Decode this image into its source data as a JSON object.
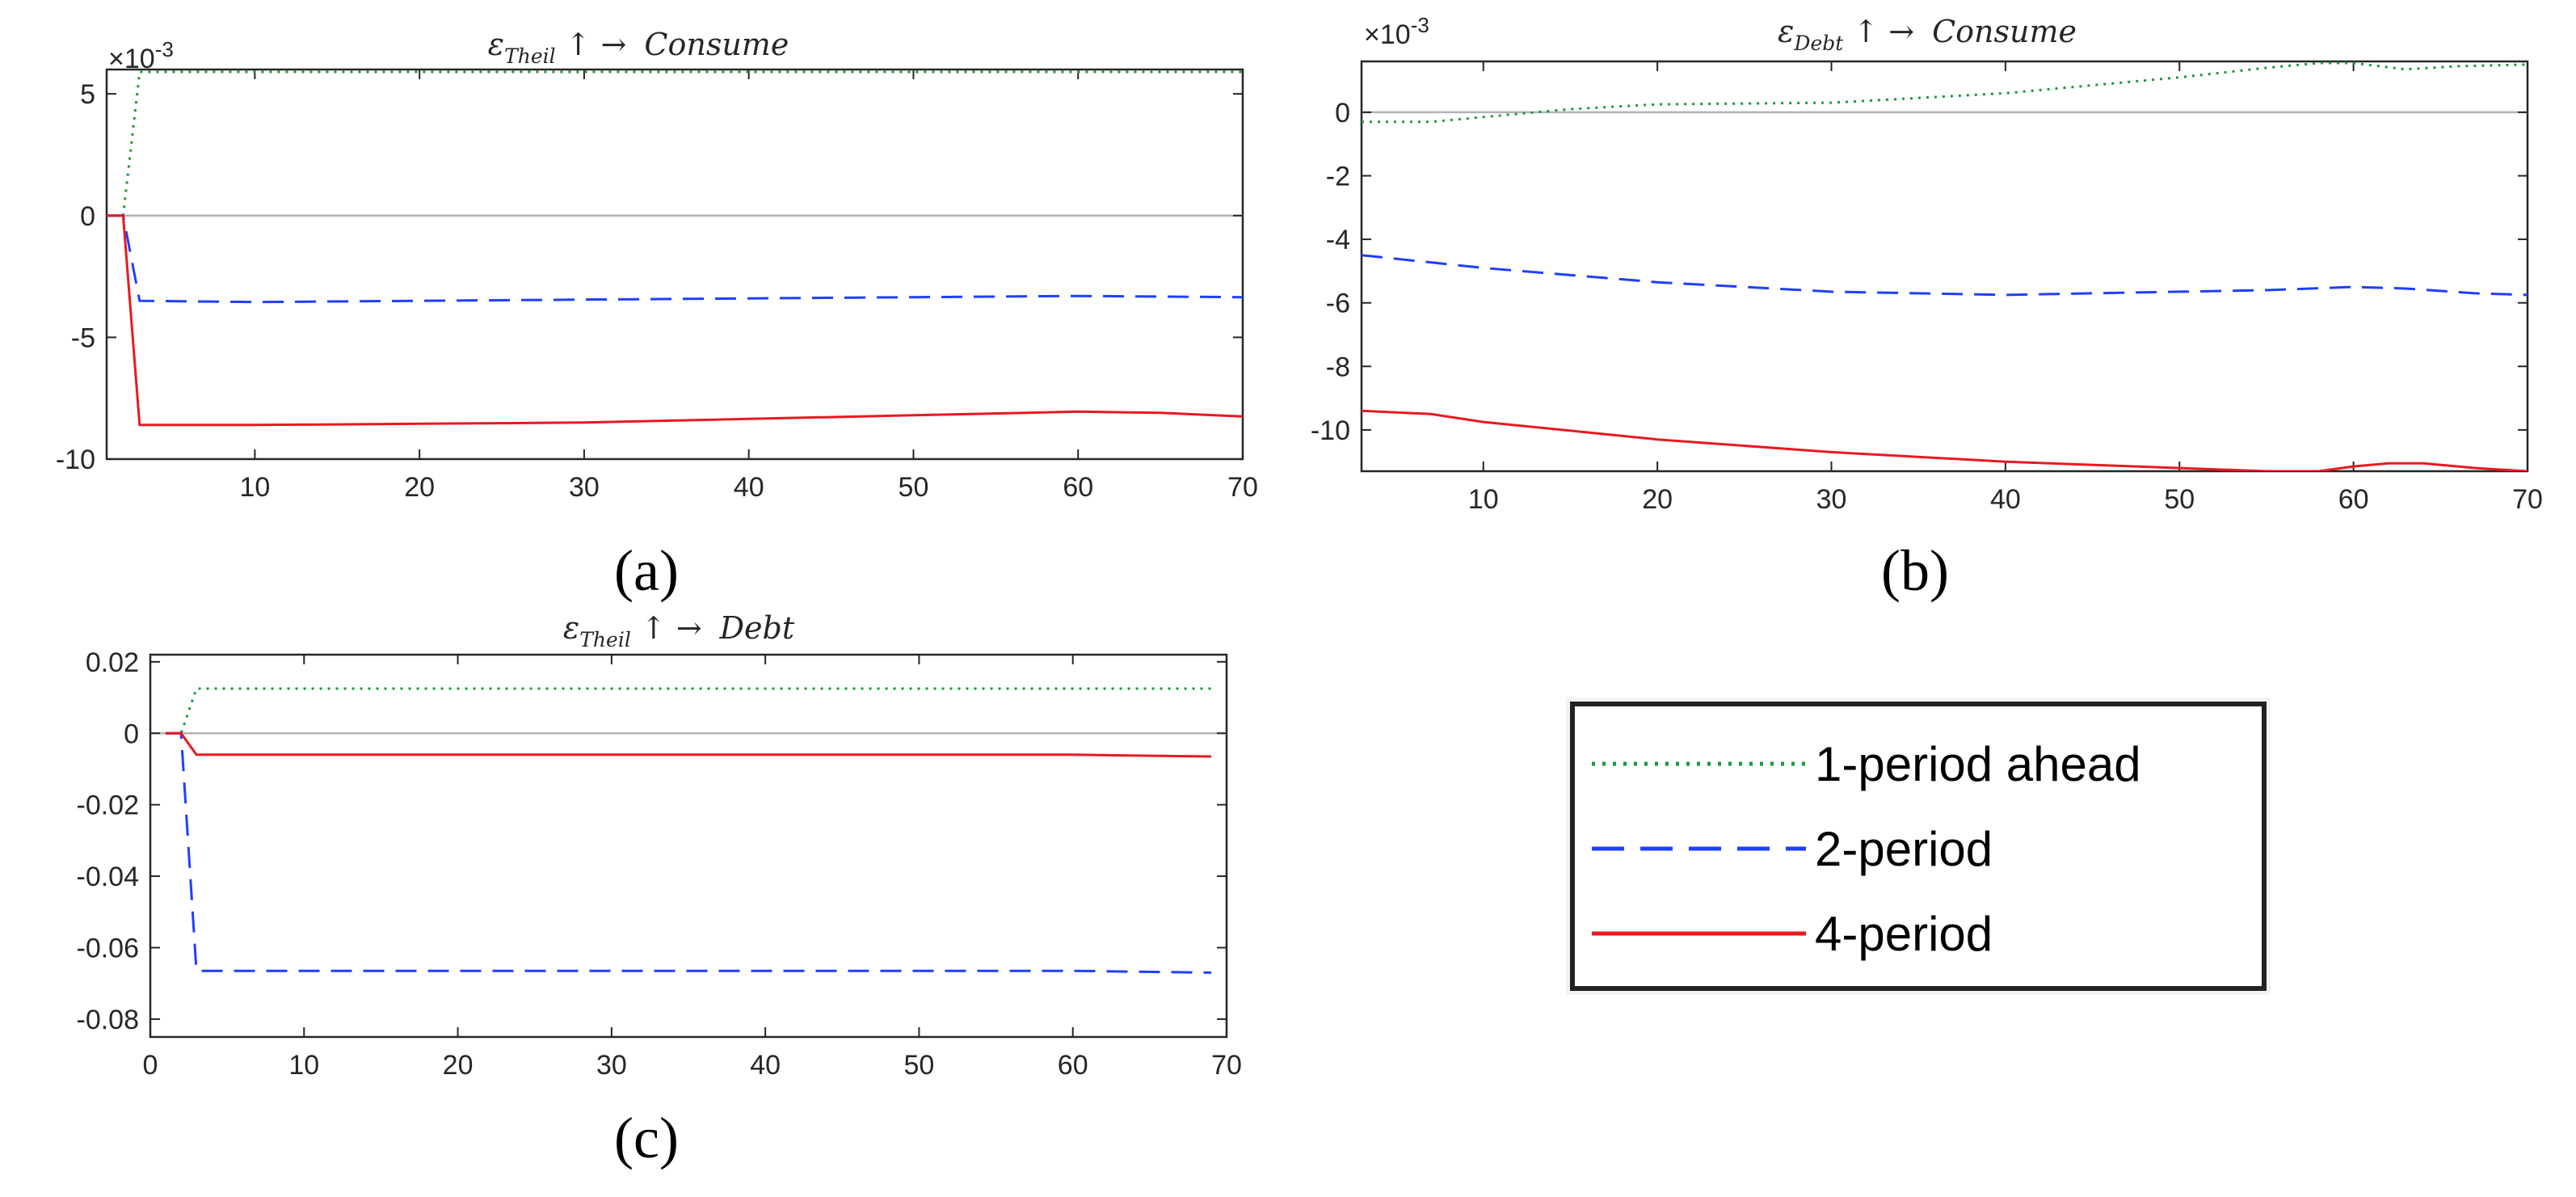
{
  "chart_data": [
    {
      "id": "a",
      "type": "line",
      "panel_label": "(a)",
      "title": {
        "symbol": "ε",
        "subscript": "Theil",
        "arrows": "↑ →",
        "target": "Consume"
      },
      "exponent": {
        "times": "×",
        "base": "10",
        "power": "-3"
      },
      "xlim": [
        1,
        70
      ],
      "ylim": [
        -10,
        6
      ],
      "xticks": [
        10,
        20,
        30,
        40,
        50,
        60,
        70
      ],
      "xtick_labels": [
        "10",
        "20",
        "30",
        "40",
        "50",
        "60",
        "70"
      ],
      "yticks": [
        5,
        0,
        -5,
        -10
      ],
      "ytick_labels": [
        "5",
        "0",
        "-5",
        "-10"
      ],
      "zero_line": true,
      "series": [
        {
          "name": "1-period ahead",
          "x": [
            1,
            2,
            3,
            10,
            20,
            30,
            40,
            50,
            60,
            70
          ],
          "y": [
            0,
            0,
            5.9,
            5.9,
            5.9,
            5.9,
            5.9,
            5.9,
            5.9,
            5.9
          ]
        },
        {
          "name": "2-period",
          "x": [
            1,
            2,
            3,
            10,
            20,
            30,
            40,
            50,
            60,
            70
          ],
          "y": [
            0,
            0,
            -3.5,
            -3.55,
            -3.5,
            -3.45,
            -3.4,
            -3.35,
            -3.3,
            -3.35
          ]
        },
        {
          "name": "4-period",
          "x": [
            1,
            2,
            3,
            10,
            20,
            30,
            40,
            50,
            60,
            65,
            70
          ],
          "y": [
            0,
            0,
            -8.6,
            -8.6,
            -8.55,
            -8.5,
            -8.35,
            -8.2,
            -8.05,
            -8.1,
            -8.25
          ]
        }
      ]
    },
    {
      "id": "b",
      "type": "line",
      "panel_label": "(b)",
      "title": {
        "symbol": "ε",
        "subscript": "Debt",
        "arrows": "↑ →",
        "target": "Consume"
      },
      "exponent": {
        "times": "×",
        "base": "10",
        "power": "-3"
      },
      "xlim": [
        3,
        70
      ],
      "ylim": [
        -11.3,
        1.6
      ],
      "xticks": [
        10,
        20,
        30,
        40,
        50,
        60,
        70
      ],
      "xtick_labels": [
        "10",
        "20",
        "30",
        "40",
        "50",
        "60",
        "70"
      ],
      "yticks": [
        0,
        -2,
        -4,
        -6,
        -8,
        -10
      ],
      "ytick_labels": [
        "0",
        "-2",
        "-4",
        "-6",
        "-8",
        "-10"
      ],
      "zero_line": true,
      "series": [
        {
          "name": "1-period ahead",
          "x": [
            3,
            7,
            10,
            15,
            20,
            30,
            40,
            50,
            55,
            58,
            60,
            63,
            66,
            70
          ],
          "y": [
            -0.3,
            -0.3,
            -0.15,
            0.1,
            0.25,
            0.3,
            0.6,
            1.1,
            1.4,
            1.55,
            1.55,
            1.35,
            1.45,
            1.5
          ]
        },
        {
          "name": "2-period",
          "x": [
            3,
            10,
            20,
            30,
            40,
            50,
            55,
            60,
            63,
            67,
            70
          ],
          "y": [
            -4.5,
            -4.9,
            -5.35,
            -5.65,
            -5.75,
            -5.65,
            -5.6,
            -5.5,
            -5.55,
            -5.7,
            -5.75
          ]
        },
        {
          "name": "4-period",
          "x": [
            3,
            7,
            10,
            20,
            30,
            40,
            50,
            55,
            58,
            60,
            62,
            64,
            67,
            70
          ],
          "y": [
            -9.4,
            -9.5,
            -9.75,
            -10.3,
            -10.7,
            -11.0,
            -11.2,
            -11.3,
            -11.3,
            -11.15,
            -11.05,
            -11.05,
            -11.2,
            -11.3
          ]
        }
      ]
    },
    {
      "id": "c",
      "type": "line",
      "panel_label": "(c)",
      "title": {
        "symbol": "ε",
        "subscript": "Theil",
        "arrows": "↑ →",
        "target": "Debt"
      },
      "exponent": null,
      "xlim": [
        0,
        70
      ],
      "ylim": [
        -0.085,
        0.022
      ],
      "xticks": [
        0,
        10,
        20,
        30,
        40,
        50,
        60,
        70
      ],
      "xtick_labels": [
        "0",
        "10",
        "20",
        "30",
        "40",
        "50",
        "60",
        "70"
      ],
      "yticks": [
        0.02,
        0,
        -0.02,
        -0.04,
        -0.06,
        -0.08
      ],
      "ytick_labels": [
        "0.02",
        "0",
        "-0.02",
        "-0.04",
        "-0.06",
        "-0.08"
      ],
      "zero_line": true,
      "series": [
        {
          "name": "1-period ahead",
          "x": [
            1,
            2,
            3,
            10,
            20,
            30,
            40,
            50,
            60,
            69
          ],
          "y": [
            0,
            0,
            0.0125,
            0.0125,
            0.0125,
            0.0125,
            0.0125,
            0.0125,
            0.0125,
            0.0125
          ]
        },
        {
          "name": "2-period",
          "x": [
            1,
            2,
            3,
            10,
            20,
            30,
            40,
            50,
            60,
            69
          ],
          "y": [
            0,
            0,
            -0.0665,
            -0.0665,
            -0.0665,
            -0.0665,
            -0.0665,
            -0.0665,
            -0.0665,
            -0.067
          ]
        },
        {
          "name": "4-period",
          "x": [
            1,
            2,
            3,
            10,
            20,
            30,
            40,
            50,
            60,
            69
          ],
          "y": [
            0,
            0,
            -0.006,
            -0.006,
            -0.006,
            -0.006,
            -0.006,
            -0.006,
            -0.006,
            -0.0065
          ]
        }
      ]
    }
  ],
  "legend": {
    "entries": [
      {
        "label": "1-period ahead",
        "series": "1-period ahead"
      },
      {
        "label": "2-period",
        "series": "2-period"
      },
      {
        "label": "4-period",
        "series": "4-period"
      }
    ]
  },
  "colors": {
    "1-period ahead": "#1a9a3a",
    "2-period": "#1f3fff",
    "4-period": "#e8191f",
    "zero_line": "#b3b3b3",
    "axes": "#262626"
  }
}
